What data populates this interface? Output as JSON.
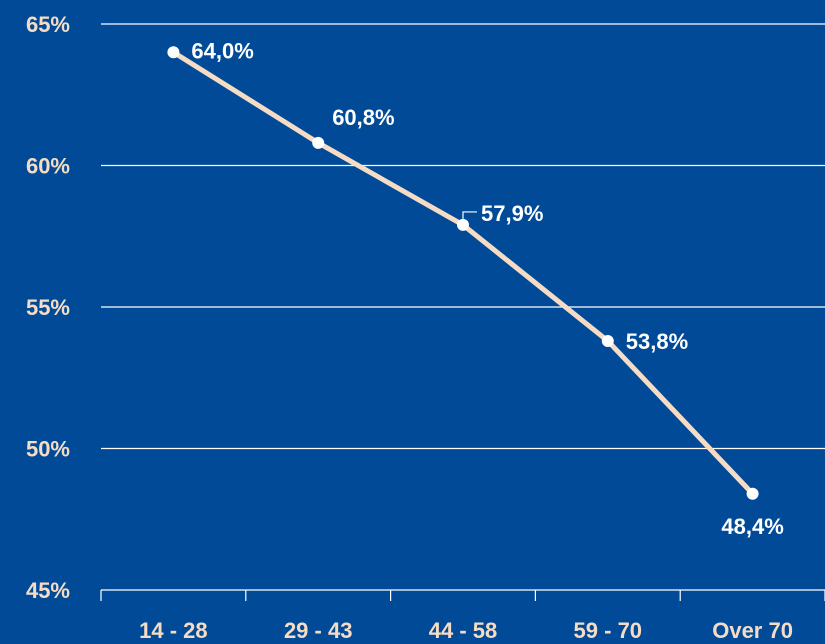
{
  "colors": {
    "background": "#004a97",
    "line": "#f7dcc5",
    "marker": "#ffffff",
    "gridline": "#ffffff",
    "tick_label": "#f6dcc4",
    "data_label": "#ffffff"
  },
  "chart_data": {
    "type": "line",
    "title": "",
    "xlabel": "",
    "ylabel": "",
    "categories": [
      "14 - 28",
      "29 - 43",
      "44 - 58",
      "59 - 70",
      "Over 70"
    ],
    "series": [
      {
        "values": [
          64.0,
          60.8,
          57.9,
          53.8,
          48.4
        ],
        "labels": [
          "64,0%",
          "60,8%",
          "57,9%",
          "53,8%",
          "48,4%"
        ]
      }
    ],
    "ylim": [
      45,
      65
    ],
    "yticks": [
      65,
      60,
      55,
      50,
      45
    ],
    "ytick_labels": [
      "65%",
      "60%",
      "55%",
      "50%",
      "45%"
    ],
    "grid": true,
    "legend": "none"
  }
}
